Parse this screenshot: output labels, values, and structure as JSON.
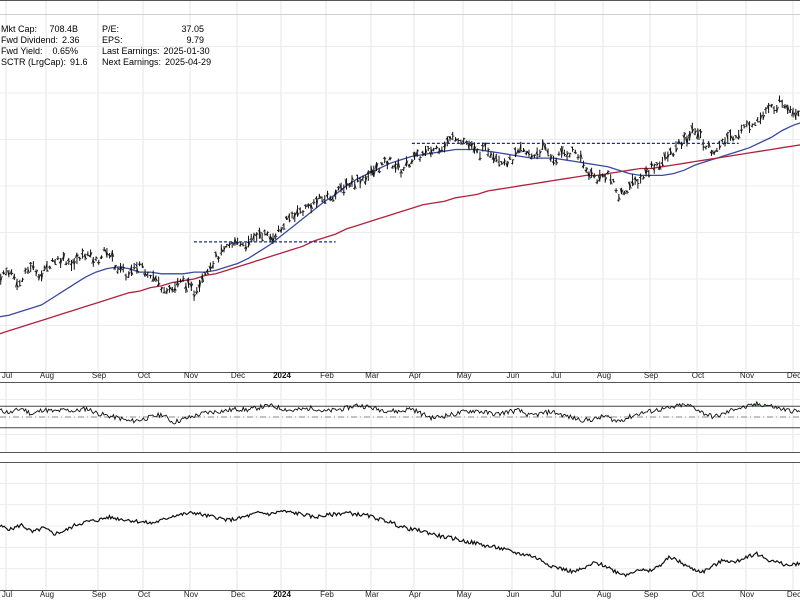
{
  "stats": {
    "left": [
      {
        "label": "Mkt Cap:",
        "value": "708.4B"
      },
      {
        "label": "Fwd Dividend:",
        "value": "2.36"
      },
      {
        "label": "Fwd Yield:",
        "value": "0.65%"
      },
      {
        "label": "SCTR (LrgCap):",
        "value": "91.6"
      }
    ],
    "right": [
      {
        "label": "P/E:",
        "value": "37.05"
      },
      {
        "label": "EPS:",
        "value": "9.79"
      },
      {
        "label": "Last Earnings:",
        "value": "2025-01-30"
      },
      {
        "label": "Next Earnings:",
        "value": "2025-04-29"
      }
    ]
  },
  "chart_data": {
    "type": "line",
    "title": "",
    "x_axis": {
      "labels": [
        "Jul",
        "Aug",
        "Sep",
        "Oct",
        "Nov",
        "Dec",
        "2024",
        "Feb",
        "Mar",
        "Apr",
        "May",
        "Jun",
        "Jul",
        "Aug",
        "Sep",
        "Oct",
        "Nov",
        "Dec"
      ],
      "emphasized": [
        "2024"
      ]
    },
    "grid": true,
    "panels": [
      {
        "name": "price",
        "chart_type": "ohlc",
        "y_visible": false,
        "series": [
          {
            "name": "",
            "kind": "price",
            "color": "#000000",
            "values": [
              295,
              299,
              291,
              302,
              296,
              305,
              306,
              303,
              309,
              304,
              311,
              300,
              296,
              303,
              297,
              290,
              288,
              293,
              286,
              299,
              306,
              311,
              316,
              314,
              321,
              318,
              323,
              331,
              334,
              338,
              341,
              343,
              349,
              351,
              354,
              359,
              362,
              357,
              363,
              366,
              369,
              372,
              377,
              373,
              367,
              369,
              364,
              362,
              368,
              365,
              370,
              363,
              367,
              368,
              357,
              352,
              355,
              342,
              348,
              352,
              359,
              362,
              368,
              374,
              381,
              371,
              368,
              376,
              379,
              384,
              387,
              393,
              397,
              392,
              390
            ]
          },
          {
            "name": "",
            "kind": "ma-short",
            "color": "#3a4aa0",
            "values": [
              272,
              273,
              275,
              277,
              279,
              283,
              287,
              291,
              295,
              298,
              300,
              301,
              300,
              298,
              298,
              297,
              297,
              297,
              298,
              298,
              299,
              301,
              303,
              306,
              310,
              314,
              319,
              324,
              329,
              334,
              339,
              343,
              348,
              352,
              355,
              358,
              361,
              363,
              365,
              366,
              367,
              368,
              369,
              369,
              369,
              368,
              367,
              366,
              365,
              364,
              364,
              364,
              363,
              362,
              361,
              360,
              359,
              357,
              355,
              354,
              354,
              354,
              355,
              357,
              360,
              362,
              364,
              366,
              368,
              370,
              373,
              376,
              380,
              383,
              385
            ]
          },
          {
            "name": "",
            "kind": "ma-long",
            "color": "#b0223c",
            "values": [
              262,
              264,
              266,
              268,
              270,
              272,
              274,
              276,
              278,
              280,
              282,
              284,
              286,
              287,
              289,
              290,
              292,
              293,
              294,
              296,
              297,
              299,
              301,
              303,
              305,
              307,
              309,
              311,
              313,
              316,
              318,
              320,
              323,
              325,
              327,
              329,
              331,
              333,
              335,
              337,
              338,
              339,
              341,
              342,
              343,
              345,
              346,
              347,
              348,
              349,
              350,
              351,
              352,
              353,
              354,
              354,
              355,
              356,
              357,
              358,
              358,
              359,
              360,
              361,
              362,
              363,
              364,
              365,
              366,
              367,
              368,
              369,
              370,
              371,
              372
            ]
          }
        ],
        "annotations": [
          {
            "kind": "dashed-resistance",
            "y": 315.5,
            "x_start": 18,
            "x_end": 31
          },
          {
            "kind": "dashed-resistance",
            "y": 372.5,
            "x_start": 38,
            "x_end": 68
          }
        ]
      },
      {
        "name": "oscillator",
        "y_visible": false,
        "upper_band": 70,
        "lower_band": 30,
        "series": [
          {
            "name": "",
            "color": "#000000",
            "values": [
              62,
              58,
              66,
              55,
              64,
              60,
              63,
              61,
              66,
              57,
              52,
              48,
              42,
              45,
              50,
              55,
              40,
              46,
              52,
              58,
              60,
              62,
              65,
              63,
              68,
              71,
              66,
              62,
              64,
              67,
              60,
              63,
              66,
              72,
              69,
              64,
              62,
              60,
              66,
              56,
              48,
              52,
              55,
              60,
              62,
              58,
              55,
              60,
              62,
              52,
              56,
              60,
              54,
              48,
              44,
              46,
              52,
              42,
              48,
              56,
              60,
              64,
              66,
              72,
              70,
              58,
              50,
              56,
              66,
              68,
              74,
              72,
              66,
              62,
              60
            ]
          }
        ]
      },
      {
        "name": "relative",
        "y_visible": false,
        "series": [
          {
            "name": "",
            "color": "#000000",
            "values": [
              54,
              52,
              55,
              50,
              53,
              49,
              51,
              55,
              57,
              58,
              60,
              59,
              58,
              57,
              56,
              58,
              61,
              62,
              63,
              61,
              60,
              58,
              59,
              61,
              63,
              62,
              64,
              63,
              62,
              60,
              61,
              62,
              63,
              62,
              61,
              59,
              57,
              54,
              52,
              51,
              49,
              47,
              46,
              44,
              43,
              41,
              40,
              38,
              36,
              35,
              32,
              28,
              26,
              24,
              26,
              30,
              28,
              24,
              22,
              26,
              24,
              28,
              34,
              30,
              26,
              24,
              28,
              32,
              30,
              34,
              36,
              32,
              30,
              28,
              30
            ]
          }
        ]
      }
    ]
  }
}
